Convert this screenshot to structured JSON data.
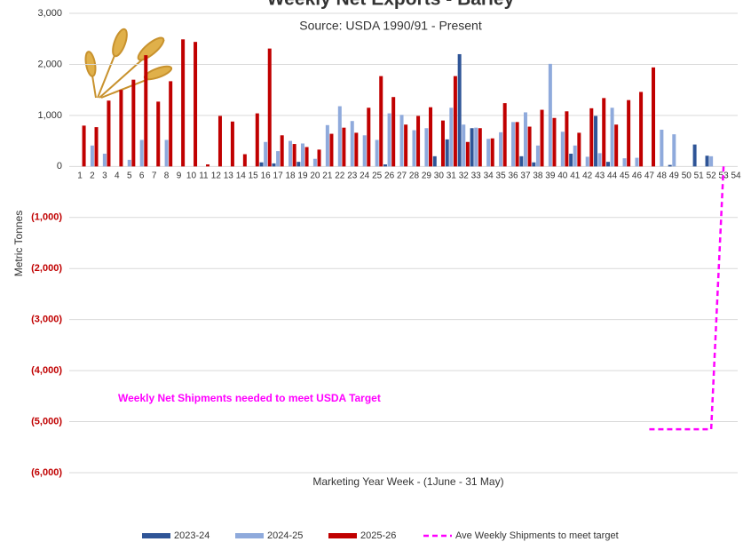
{
  "chart_data": {
    "type": "bar",
    "title": "Weekly Net Exports - Barley",
    "subtitle": "Source: USDA 1990/91 - Present",
    "y_label": "Metric Tonnes",
    "x_label": "Marketing Year Week - (1June - 31 May)",
    "annotation": "Weekly Net Shipments needed to meet USDA Target",
    "categories": [
      "1",
      "2",
      "3",
      "4",
      "5",
      "6",
      "7",
      "8",
      "9",
      "10",
      "11",
      "12",
      "13",
      "14",
      "15",
      "16",
      "17",
      "18",
      "19",
      "20",
      "21",
      "22",
      "23",
      "24",
      "25",
      "26",
      "27",
      "28",
      "29",
      "30",
      "31",
      "32",
      "33",
      "34",
      "35",
      "36",
      "37",
      "38",
      "39",
      "40",
      "41",
      "42",
      "43",
      "44",
      "45",
      "46",
      "47",
      "48",
      "49",
      "50",
      "51",
      "52",
      "53",
      "54"
    ],
    "series": [
      {
        "name": "2023-24",
        "color": "#2f5597",
        "values": [
          0,
          0,
          0,
          0,
          0,
          0,
          0,
          0,
          0,
          0,
          0,
          0,
          0,
          0,
          0,
          80,
          60,
          0,
          90,
          0,
          0,
          0,
          0,
          0,
          0,
          40,
          0,
          0,
          0,
          200,
          530,
          2200,
          750,
          0,
          0,
          0,
          200,
          80,
          0,
          0,
          250,
          0,
          990,
          90,
          0,
          0,
          0,
          0,
          30,
          0,
          430,
          210,
          0,
          0
        ]
      },
      {
        "name": "2024-25",
        "color": "#8faadc",
        "values": [
          0,
          410,
          250,
          0,
          130,
          520,
          0,
          520,
          0,
          0,
          0,
          0,
          0,
          0,
          0,
          480,
          300,
          500,
          450,
          150,
          810,
          1180,
          890,
          610,
          520,
          1040,
          1010,
          710,
          750,
          0,
          1150,
          820,
          760,
          540,
          670,
          870,
          1060,
          410,
          2010,
          680,
          410,
          190,
          260,
          1150,
          160,
          170,
          0,
          720,
          630,
          0,
          0,
          200,
          0,
          0
        ]
      },
      {
        "name": "2025-26",
        "color": "#c00000",
        "values": [
          800,
          770,
          1290,
          1500,
          1700,
          2180,
          1270,
          1670,
          2490,
          2440,
          40,
          990,
          880,
          240,
          1040,
          2310,
          610,
          440,
          380,
          330,
          640,
          760,
          660,
          1150,
          1770,
          1360,
          820,
          990,
          1160,
          900,
          1770,
          480,
          750,
          550,
          1240,
          870,
          780,
          1110,
          950,
          1080,
          660,
          1140,
          1340,
          820,
          1300,
          1460,
          1940,
          null,
          null,
          null,
          null,
          null,
          null,
          null
        ]
      }
    ],
    "line": {
      "name": "Ave Weekly Shipments to meet target",
      "color": "#ff00ff",
      "x": [
        47,
        52,
        53
      ],
      "values": [
        -5150,
        -5150,
        0
      ]
    },
    "ylim": [
      -6000,
      3000
    ],
    "yticks": [
      {
        "value": 3000,
        "label": "3,000"
      },
      {
        "value": 2000,
        "label": "2,000"
      },
      {
        "value": 1000,
        "label": "1,000"
      },
      0,
      {
        "value": -1000,
        "label": "(1,000)"
      },
      {
        "value": -2000,
        "label": "(2,000)"
      },
      {
        "value": -3000,
        "label": "(3,000)"
      },
      {
        "value": -4000,
        "label": "(4,000)"
      },
      {
        "value": -5000,
        "label": "(5,000)"
      },
      {
        "value": -6000,
        "label": "(6,000)"
      }
    ],
    "negative_tick_color": "#c00000",
    "grid": true,
    "legend": "bottom"
  }
}
